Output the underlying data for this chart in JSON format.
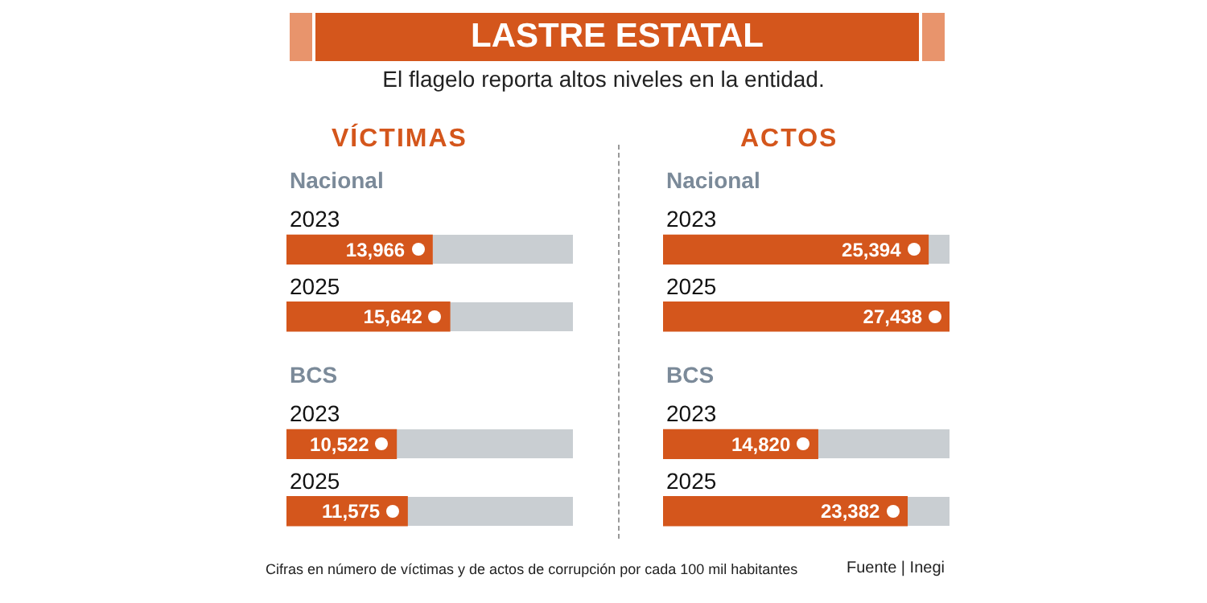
{
  "chart_data": [
    {
      "type": "other",
      "title": "LASTRE ESTATAL",
      "subtitle": "El flagelo reporta altos niveles en la entidad.",
      "annotations": [
        "Cifras en número de víctimas y de actos de corrupción por cada 100 mil habitantes",
        "Fuente | Inegi"
      ]
    },
    {
      "type": "bar",
      "orientation": "horizontal",
      "title": "VÍCTIMAS",
      "categories": [
        "2023",
        "2025",
        "2023",
        "2025"
      ],
      "values": [
        13966,
        15642,
        10522,
        11575
      ],
      "value_labels": [
        "13,966",
        "15,642",
        "10,522",
        "11,575"
      ],
      "color": "#d4561c",
      "annotations": [
        "Nacional",
        "BCS"
      ]
    },
    {
      "type": "bar",
      "orientation": "horizontal",
      "title": "ACTOS",
      "categories": [
        "2023",
        "2025",
        "2023",
        "2025"
      ],
      "values": [
        25394,
        27438,
        14820,
        23382
      ],
      "value_labels": [
        "25,394",
        "27,438",
        "14,820",
        "23,382"
      ],
      "color": "#d4561c",
      "annotations": [
        "Nacional",
        "BCS"
      ]
    }
  ]
}
